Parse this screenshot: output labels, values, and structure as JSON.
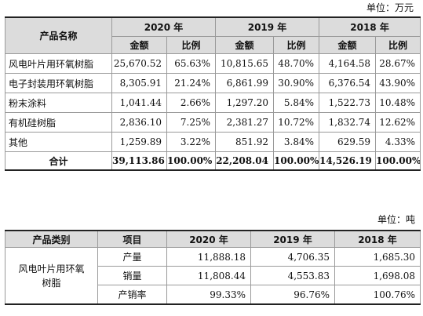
{
  "table1": {
    "unit": "单位：万元",
    "product_header": "产品名称",
    "years": [
      "2020 年",
      "2019 年",
      "2018 年"
    ],
    "sub_headers": [
      "金额",
      "比例"
    ],
    "rows": [
      {
        "name": "风电叶片用环氧树脂",
        "values": [
          "25,670.52",
          "65.63%",
          "10,815.65",
          "48.70%",
          "4,164.58",
          "28.67%"
        ]
      },
      {
        "name": "电子封装用环氧树脂",
        "values": [
          "8,305.91",
          "21.24%",
          "6,861.99",
          "30.90%",
          "6,376.54",
          "43.90%"
        ]
      },
      {
        "name": "粉末涂料",
        "values": [
          "1,041.44",
          "2.66%",
          "1,297.20",
          "5.84%",
          "1,522.73",
          "10.48%"
        ]
      },
      {
        "name": "有机硅树脂",
        "values": [
          "2,836.10",
          "7.25%",
          "2,381.27",
          "10.72%",
          "1,832.74",
          "12.62%"
        ]
      },
      {
        "name": "其他",
        "values": [
          "1,259.89",
          "3.22%",
          "851.92",
          "3.84%",
          "629.59",
          "4.33%"
        ]
      }
    ],
    "total": {
      "name": "合计",
      "values": [
        "39,113.86",
        "100.00%",
        "22,208.04",
        "100.00%",
        "14,526.19",
        "100.00%"
      ]
    }
  },
  "table2": {
    "unit": "单位：吨",
    "headers": [
      "产品类别",
      "项目",
      "2020 年",
      "2019 年",
      "2018 年"
    ],
    "product": "风电叶片用环氧树脂",
    "rows": [
      {
        "item": "产量",
        "values": [
          "11,888.18",
          "4,706.35",
          "1,685.30"
        ]
      },
      {
        "item": "销量",
        "values": [
          "11,808.44",
          "4,553.83",
          "1,698.08"
        ]
      },
      {
        "item": "产销率",
        "values": [
          "99.33%",
          "96.76%",
          "100.76%"
        ]
      }
    ]
  }
}
